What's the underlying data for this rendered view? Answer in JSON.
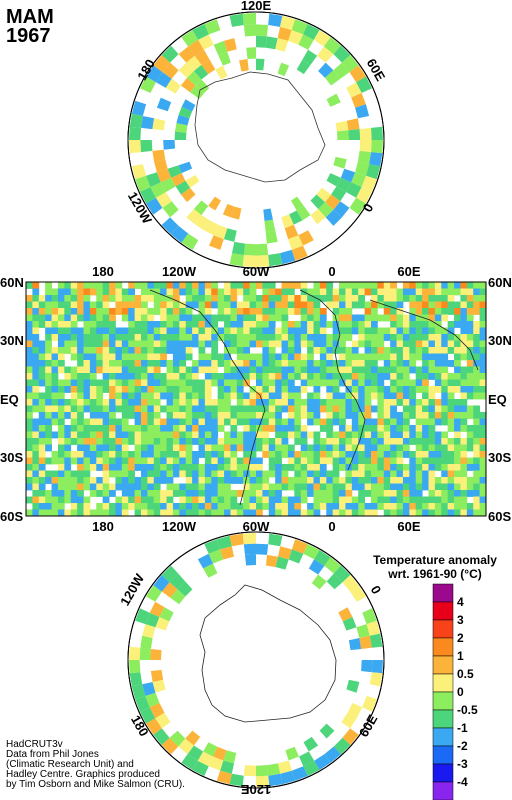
{
  "title": {
    "season": "MAM",
    "year": "1967"
  },
  "north_polar": {
    "labels": {
      "top": "120E",
      "left": "180",
      "right": "60E",
      "lower_left": "120W",
      "lower_right": "0"
    }
  },
  "main_map": {
    "lat_labels": [
      "60N",
      "30N",
      "EQ",
      "30S",
      "60S"
    ],
    "lon_labels": [
      "180",
      "120W",
      "60W",
      "0",
      "60E"
    ]
  },
  "south_polar": {
    "labels": {
      "upper_left": "120W",
      "upper_right": "0",
      "lower_left": "180",
      "lower_right": "60E",
      "bottom": "120E"
    }
  },
  "legend": {
    "title_line1": "Temperature anomaly",
    "title_line2": "wrt. 1961-90  (°C)",
    "ticks": [
      "4",
      "3",
      "2",
      "1",
      "0.5",
      "0",
      "-0.5",
      "-1",
      "-2",
      "-3",
      "-4"
    ],
    "colors": [
      "#9b0a8c",
      "#e8001b",
      "#f7421a",
      "#fb8a1e",
      "#fbb33a",
      "#fbf07a",
      "#8ced5e",
      "#4dd57c",
      "#3aa9f1",
      "#1a6af5",
      "#1a1af0",
      "#8a25f0"
    ]
  },
  "credits": {
    "line1": "HadCRUT3v",
    "line2": "Data from Phil Jones",
    "line3": "(Climatic Research Unit) and",
    "line4": "Hadley Centre.  Graphics produced",
    "line5": "by Tim Osborn and Mike Salmon (CRU)."
  }
}
